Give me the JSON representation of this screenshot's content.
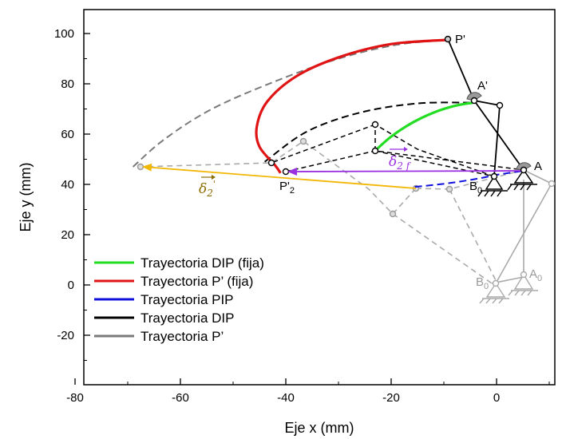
{
  "chart_data": {
    "type": "line",
    "xlabel": "Eje x (mm)",
    "ylabel": "Eje y (mm)",
    "xlim": [
      -80,
      10
    ],
    "ylim": [
      -40,
      110
    ],
    "x_ticks": [
      "-80",
      "-60",
      "-40",
      "-20",
      "0"
    ],
    "y_ticks": [
      "-20",
      "0",
      "20",
      "40",
      "60",
      "80",
      "100"
    ],
    "grid": false,
    "legend_position": "bottom-left",
    "series": [
      {
        "name": "Trayectoria DIP (fija)",
        "color": "#22dd22",
        "style": "solid",
        "points": [
          [
            -23.5,
            52.5
          ],
          [
            -20,
            59
          ],
          [
            -16,
            64.5
          ],
          [
            -12,
            68.5
          ],
          [
            -8,
            71.2
          ],
          [
            -4.5,
            72.5
          ]
        ]
      },
      {
        "name": "Trayectoria P’ (fija)",
        "color": "#e01414",
        "style": "solid",
        "points": [
          [
            -9,
            97.5
          ],
          [
            -20,
            95.8
          ],
          [
            -30,
            90.5
          ],
          [
            -38,
            83
          ],
          [
            -43.5,
            73
          ],
          [
            -45.5,
            63
          ],
          [
            -45,
            55
          ],
          [
            -42,
            47.5
          ],
          [
            -41,
            44.5
          ]
        ]
      },
      {
        "name": "Trayectoria PIP",
        "color": "#1010dd",
        "style": "dashed",
        "points": [
          [
            -15.5,
            39
          ],
          [
            -9,
            40.5
          ],
          [
            -3,
            42.5
          ],
          [
            0,
            43.8
          ],
          [
            5.5,
            45.5
          ]
        ]
      },
      {
        "name": "Trayectoria DIP",
        "color": "#000000",
        "style": "dashed",
        "points": [
          [
            -44,
            49
          ],
          [
            -36,
            61
          ],
          [
            -26,
            68.5
          ],
          [
            -15,
            72.2
          ],
          [
            -4.5,
            72.5
          ]
        ]
      },
      {
        "name": "Trayectoria P’",
        "color": "#7a7a7a",
        "style": "dashed",
        "points": [
          [
            -69,
            47
          ],
          [
            -63,
            58
          ],
          [
            -54,
            70
          ],
          [
            -42,
            81
          ],
          [
            -30,
            90
          ],
          [
            -19,
            95.5
          ],
          [
            -9,
            97.5
          ]
        ]
      }
    ],
    "annotations": {
      "point_labels": [
        {
          "text": "P'",
          "x": -9,
          "y": 97.5
        },
        {
          "text": "A'",
          "x": -4.5,
          "y": 72.5
        },
        {
          "text": "A",
          "x": 5.5,
          "y": 45.5
        },
        {
          "text": "B",
          "sub": "0",
          "x": 0.5,
          "y": 42
        },
        {
          "text": "P'",
          "sub": "2",
          "x": -41,
          "y": 44.5
        },
        {
          "text": "A",
          "sub": "0",
          "x": 5.5,
          "y": 4
        },
        {
          "text": "B",
          "sub": "0",
          "x": 0,
          "y": 1
        }
      ],
      "vectors": [
        {
          "name": "δ₂′",
          "from": [
            -15.5,
            39
          ],
          "to": [
            -69,
            47
          ],
          "color": "#f2b705"
        },
        {
          "name": "δ₂f",
          "from": [
            5.5,
            45.5
          ],
          "to": [
            -41,
            44.5
          ],
          "color": "#9a30e0"
        }
      ]
    }
  },
  "legend": {
    "entries": [
      {
        "label": "Trayectoria DIP (fija)",
        "color": "#22dd22"
      },
      {
        "label": "Trayectoria P’ (fija)",
        "color": "#e01414"
      },
      {
        "label": "Trayectoria PIP",
        "color": "#1010dd"
      },
      {
        "label": "Trayectoria DIP",
        "color": "#000000"
      },
      {
        "label": "Trayectoria P’",
        "color": "#7a7a7a"
      }
    ]
  },
  "labels": {
    "p_prime": "P'",
    "a_prime": "A'",
    "a": "A",
    "b": "B",
    "sub_zero": "0",
    "p2": "P'",
    "sub_two": "2",
    "a0": "A",
    "b0": "B",
    "delta": "δ",
    "sub_2f": "2 f",
    "sub_2": "2",
    "prime": "'"
  }
}
